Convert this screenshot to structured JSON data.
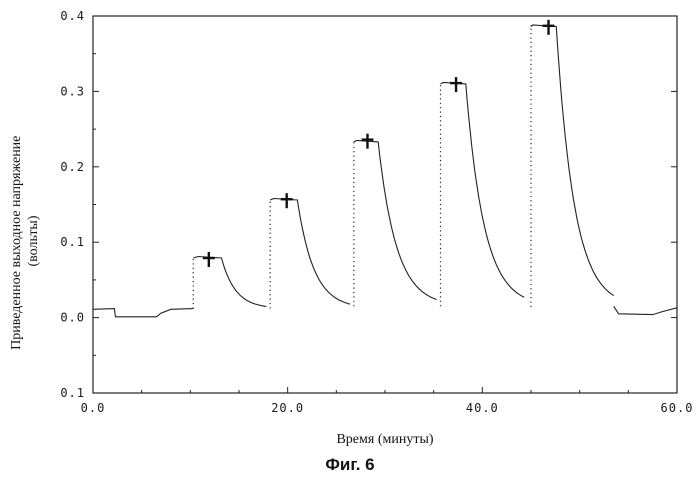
{
  "chart_data": {
    "type": "line",
    "xlabel": "Время (минуты)",
    "ylabel": "Приведенное выходное напряжение (вольты)",
    "ylabel_lines": [
      "Приведенное выходное напряжение",
      "(вольты)"
    ],
    "xlim": [
      0,
      60
    ],
    "ylim": [
      -0.1,
      0.4
    ],
    "x_ticks": [
      0,
      20,
      40,
      60
    ],
    "x_tick_labels": [
      "0.0",
      "20.0",
      "40.0",
      "60.0"
    ],
    "y_ticks": [
      -0.1,
      0,
      0.1,
      0.2,
      0.3,
      0.4
    ],
    "y_tick_labels": [
      "0.1",
      "0.0",
      "0.1",
      "0.2",
      "0.3",
      "0.4"
    ],
    "grid": false,
    "series": [
      {
        "color": "#222222",
        "peaks": [
          {
            "rise_x": 10.3,
            "x_start": 10.8,
            "x_end": 13.2,
            "peak_y": 0.081,
            "decay_end_x": 17.8,
            "base_y": 0.012
          },
          {
            "rise_x": 18.2,
            "x_start": 18.6,
            "x_end": 21.0,
            "peak_y": 0.158,
            "decay_end_x": 26.4,
            "base_y": 0.012
          },
          {
            "rise_x": 26.8,
            "x_start": 27.1,
            "x_end": 29.3,
            "peak_y": 0.235,
            "decay_end_x": 35.3,
            "base_y": 0.015
          },
          {
            "rise_x": 35.7,
            "x_start": 36.0,
            "x_end": 38.3,
            "peak_y": 0.312,
            "decay_end_x": 44.3,
            "base_y": 0.015
          },
          {
            "rise_x": 45.0,
            "x_start": 45.2,
            "x_end": 47.6,
            "peak_y": 0.388,
            "decay_end_x": 53.5,
            "base_y": 0.014
          }
        ],
        "baseline": [
          [
            0,
            0.011
          ],
          [
            2.2,
            0.012
          ],
          [
            2.3,
            0.001
          ],
          [
            6.5,
            0.001
          ],
          [
            7.0,
            0.006
          ],
          [
            8.0,
            0.011
          ],
          [
            10.3,
            0.012
          ]
        ],
        "tail": [
          [
            53.5,
            0.015
          ],
          [
            54.0,
            0.005
          ],
          [
            57.5,
            0.004
          ],
          [
            58.5,
            0.008
          ],
          [
            60,
            0.013
          ]
        ]
      }
    ],
    "markers": [
      {
        "x": 11.9,
        "y": 0.079
      },
      {
        "x": 19.9,
        "y": 0.157
      },
      {
        "x": 28.2,
        "y": 0.236
      },
      {
        "x": 37.3,
        "y": 0.311
      },
      {
        "x": 46.8,
        "y": 0.387
      }
    ]
  },
  "caption": "Фиг. 6"
}
